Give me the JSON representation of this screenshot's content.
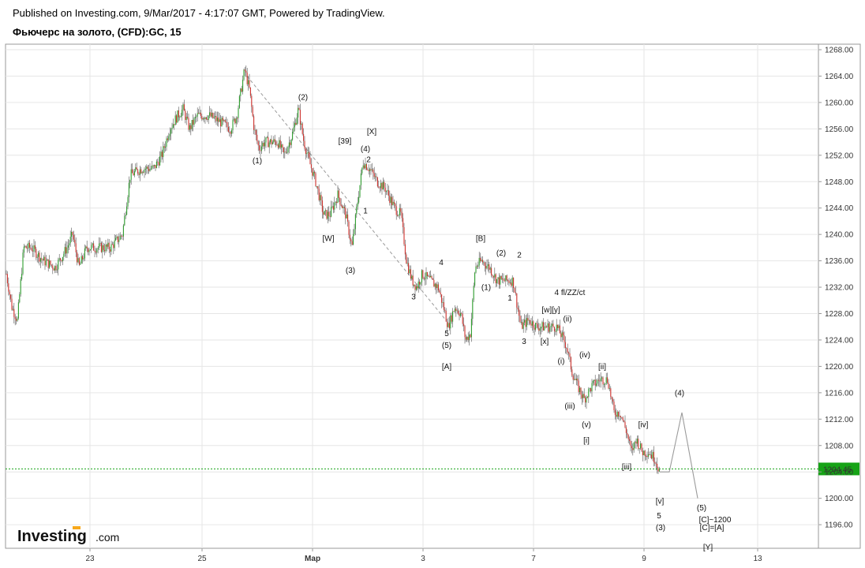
{
  "header": {
    "published": "Published on Investing.com, 9/Mar/2017 - 4:17:07 GMT, Powered by TradingView.",
    "title": "Фьючерс на золото, (CFD):GC, 15"
  },
  "logo": {
    "brand": "Investing",
    "suffix": ".com"
  },
  "colors": {
    "up": "#2e9e2e",
    "down": "#d0312d",
    "wick": "#555555",
    "price_line": "#16a316",
    "purple": "#e040e0",
    "gray": "#888888"
  },
  "chart_data": {
    "type": "candlestick",
    "title": "Фьючерс на золото, (CFD):GC, 15",
    "ylim": [
      1193.5,
      1269.5
    ],
    "xlim": [
      0,
      1035
    ],
    "y_ticks": [
      "1268.00",
      "1264.00",
      "1260.00",
      "1256.00",
      "1252.00",
      "1248.00",
      "1244.00",
      "1240.00",
      "1236.00",
      "1232.00",
      "1228.00",
      "1224.00",
      "1220.00",
      "1216.00",
      "1212.00",
      "1208.00",
      "1204.00",
      "1200.00",
      "1196.00"
    ],
    "x_ticks": [
      {
        "x": 114,
        "label": "23"
      },
      {
        "x": 256,
        "label": "25"
      },
      {
        "x": 396,
        "label": "Мар"
      },
      {
        "x": 536,
        "label": "3"
      },
      {
        "x": 676,
        "label": "7"
      },
      {
        "x": 816,
        "label": "9"
      },
      {
        "x": 960,
        "label": "13"
      }
    ],
    "last_price": "1204.45",
    "price_path": [
      [
        8,
        1234
      ],
      [
        15,
        1229
      ],
      [
        22,
        1227
      ],
      [
        30,
        1238
      ],
      [
        40,
        1238
      ],
      [
        55,
        1236
      ],
      [
        70,
        1235
      ],
      [
        85,
        1238
      ],
      [
        92,
        1240
      ],
      [
        100,
        1235
      ],
      [
        110,
        1238
      ],
      [
        125,
        1238
      ],
      [
        140,
        1238
      ],
      [
        155,
        1240
      ],
      [
        165,
        1249
      ],
      [
        180,
        1250
      ],
      [
        195,
        1250
      ],
      [
        205,
        1252
      ],
      [
        215,
        1256
      ],
      [
        225,
        1258
      ],
      [
        232,
        1259
      ],
      [
        240,
        1256
      ],
      [
        250,
        1258
      ],
      [
        265,
        1258
      ],
      [
        280,
        1257
      ],
      [
        292,
        1256
      ],
      [
        300,
        1258
      ],
      [
        310,
        1265
      ],
      [
        316,
        1262
      ],
      [
        322,
        1256
      ],
      [
        328,
        1253
      ],
      [
        335,
        1254
      ],
      [
        345,
        1254
      ],
      [
        352,
        1254
      ],
      [
        360,
        1252
      ],
      [
        370,
        1255
      ],
      [
        378,
        1259
      ],
      [
        385,
        1254
      ],
      [
        392,
        1251
      ],
      [
        400,
        1248
      ],
      [
        410,
        1243
      ],
      [
        418,
        1243
      ],
      [
        428,
        1246
      ],
      [
        438,
        1243
      ],
      [
        446,
        1238
      ],
      [
        452,
        1244
      ],
      [
        460,
        1251
      ],
      [
        468,
        1250
      ],
      [
        478,
        1248
      ],
      [
        488,
        1247
      ],
      [
        500,
        1244
      ],
      [
        508,
        1243
      ],
      [
        515,
        1236
      ],
      [
        522,
        1233
      ],
      [
        528,
        1232
      ],
      [
        535,
        1234
      ],
      [
        545,
        1233
      ],
      [
        555,
        1232
      ],
      [
        562,
        1229
      ],
      [
        568,
        1226
      ],
      [
        576,
        1229
      ],
      [
        584,
        1228
      ],
      [
        590,
        1224
      ],
      [
        596,
        1225
      ],
      [
        602,
        1235
      ],
      [
        610,
        1236
      ],
      [
        620,
        1235
      ],
      [
        630,
        1233
      ],
      [
        642,
        1233
      ],
      [
        650,
        1233
      ],
      [
        660,
        1226
      ],
      [
        670,
        1227
      ],
      [
        680,
        1226
      ],
      [
        690,
        1226
      ],
      [
        698,
        1226
      ],
      [
        705,
        1226
      ],
      [
        710,
        1225
      ],
      [
        718,
        1223
      ],
      [
        725,
        1219
      ],
      [
        732,
        1217
      ],
      [
        740,
        1215
      ],
      [
        750,
        1217
      ],
      [
        760,
        1218
      ],
      [
        770,
        1218
      ],
      [
        778,
        1213
      ],
      [
        786,
        1213
      ],
      [
        794,
        1210
      ],
      [
        800,
        1207
      ],
      [
        806,
        1209
      ],
      [
        814,
        1207
      ],
      [
        822,
        1207
      ],
      [
        830,
        1206
      ],
      [
        836,
        1204
      ]
    ],
    "projection": [
      [
        836,
        1204
      ],
      [
        848,
        1204
      ],
      [
        864,
        1213
      ],
      [
        884,
        1200
      ]
    ],
    "trendline": [
      [
        313,
        1264
      ],
      [
        565,
        1227
      ]
    ],
    "annotations": [
      {
        "x": 384,
        "y": 1260.8,
        "text": "(2)",
        "color": "dark"
      },
      {
        "x": 326,
        "y": 1251.2,
        "text": "(1)",
        "color": "dark"
      },
      {
        "x": 471,
        "y": 1255.6,
        "text": "[X]",
        "color": "purple"
      },
      {
        "x": 437,
        "y": 1254.2,
        "text": "[39]",
        "color": "gray"
      },
      {
        "x": 463,
        "y": 1253.0,
        "text": "(4)",
        "color": "dark"
      },
      {
        "x": 467,
        "y": 1251.4,
        "text": "2",
        "color": "dark"
      },
      {
        "x": 463,
        "y": 1243.6,
        "text": "1",
        "color": "dark"
      },
      {
        "x": 416,
        "y": 1239.4,
        "text": "[W]",
        "color": "purple"
      },
      {
        "x": 444,
        "y": 1234.6,
        "text": "(3)",
        "color": "dark"
      },
      {
        "x": 559,
        "y": 1235.8,
        "text": "4",
        "color": "dark"
      },
      {
        "x": 524,
        "y": 1230.6,
        "text": "3",
        "color": "dark"
      },
      {
        "x": 566,
        "y": 1225.0,
        "text": "5",
        "color": "dark"
      },
      {
        "x": 566,
        "y": 1223.2,
        "text": "(5)",
        "color": "dark"
      },
      {
        "x": 566,
        "y": 1220.0,
        "text": "[A]",
        "color": "dark"
      },
      {
        "x": 609,
        "y": 1239.4,
        "text": "[B]",
        "color": "dark"
      },
      {
        "x": 635,
        "y": 1237.2,
        "text": "(2)",
        "color": "dark"
      },
      {
        "x": 658,
        "y": 1236.9,
        "text": "2",
        "color": "dark"
      },
      {
        "x": 616,
        "y": 1232.0,
        "text": "(1)",
        "color": "dark"
      },
      {
        "x": 646,
        "y": 1230.4,
        "text": "1",
        "color": "dark"
      },
      {
        "x": 722,
        "y": 1231.2,
        "text": "4 fl/ZZ/ct",
        "color": "dark"
      },
      {
        "x": 698,
        "y": 1228.6,
        "text": "[w][y]",
        "color": "dark"
      },
      {
        "x": 719,
        "y": 1227.2,
        "text": "(ii)",
        "color": "dark"
      },
      {
        "x": 664,
        "y": 1223.8,
        "text": "3",
        "color": "dark"
      },
      {
        "x": 690,
        "y": 1223.8,
        "text": "[x]",
        "color": "dark"
      },
      {
        "x": 741,
        "y": 1221.8,
        "text": "(iv)",
        "color": "dark"
      },
      {
        "x": 711,
        "y": 1220.8,
        "text": "(i)",
        "color": "dark"
      },
      {
        "x": 763,
        "y": 1220.0,
        "text": "[ii]",
        "color": "dark"
      },
      {
        "x": 861,
        "y": 1216.0,
        "text": "(4)",
        "color": "dark"
      },
      {
        "x": 722,
        "y": 1214.0,
        "text": "(iii)",
        "color": "dark"
      },
      {
        "x": 743,
        "y": 1211.2,
        "text": "(v)",
        "color": "dark"
      },
      {
        "x": 815,
        "y": 1211.2,
        "text": "[iv]",
        "color": "dark"
      },
      {
        "x": 743,
        "y": 1208.8,
        "text": "[i]",
        "color": "dark"
      },
      {
        "x": 794,
        "y": 1204.8,
        "text": "[iii]",
        "color": "dark"
      },
      {
        "x": 836,
        "y": 1199.6,
        "text": "[v]",
        "color": "dark"
      },
      {
        "x": 889,
        "y": 1198.6,
        "text": "(5)",
        "color": "dark"
      },
      {
        "x": 835,
        "y": 1197.4,
        "text": "5",
        "color": "dark"
      },
      {
        "x": 906,
        "y": 1196.8,
        "text": "[C]~1200",
        "color": "dark"
      },
      {
        "x": 837,
        "y": 1195.6,
        "text": "(3)",
        "color": "dark"
      },
      {
        "x": 902,
        "y": 1195.6,
        "text": "[C]=[A]",
        "color": "dark"
      },
      {
        "x": 897,
        "y": 1192.6,
        "text": "[Y]",
        "color": "purple"
      }
    ]
  }
}
